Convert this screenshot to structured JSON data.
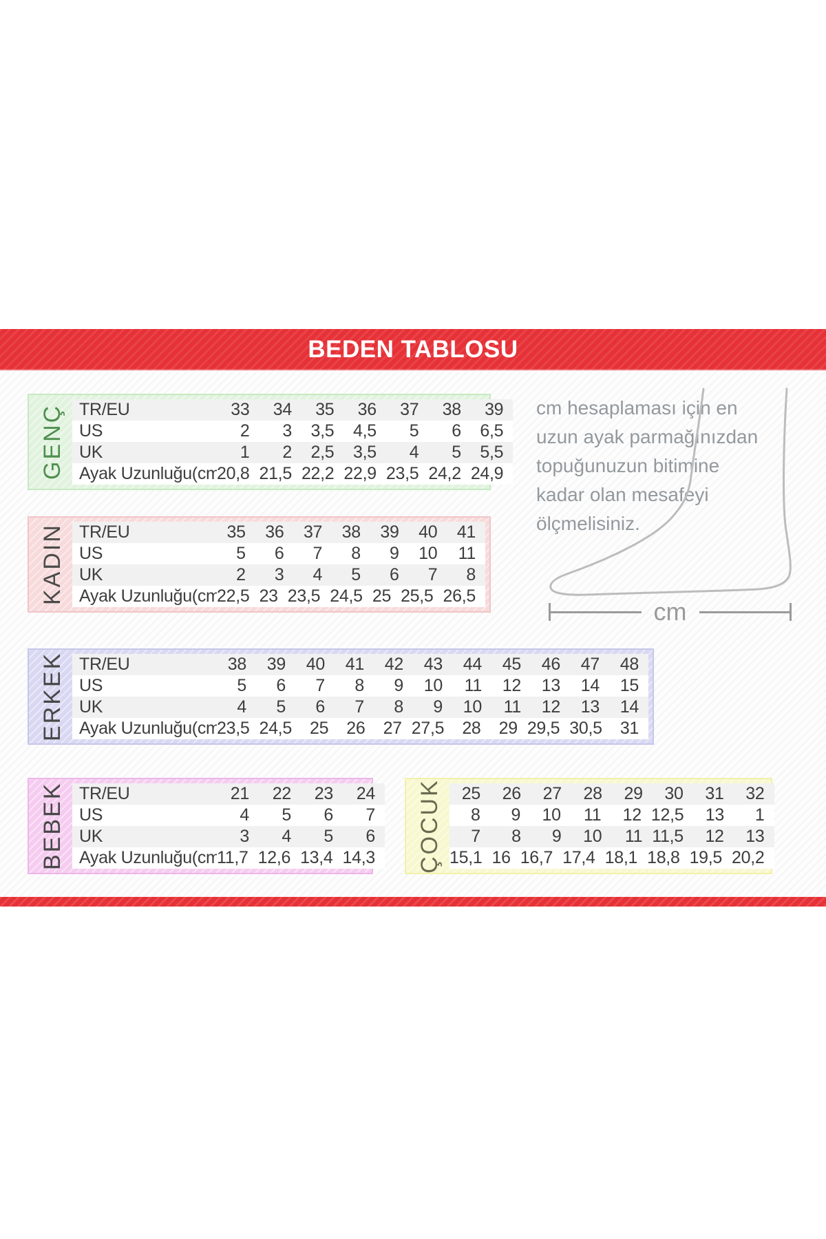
{
  "header": {
    "title": "BEDEN TABLOSU"
  },
  "instruction": {
    "lines": [
      "cm hesaplaması için en",
      "uzun ayak parmağınızdan",
      "topuğunuzun bitimine",
      "kadar olan mesafeyi",
      "ölçmelisiniz."
    ]
  },
  "measure": {
    "unit": "cm"
  },
  "colors": {
    "band_red": "#e63137",
    "table_text": "#3d3d3d",
    "row_stripe_gray": "#f1f1f1",
    "instruction_text": "#94999d",
    "foot_outline": "#bcbcbc"
  },
  "tables": [
    {
      "name": "genc",
      "label": "GENÇ",
      "bg": "#e1f3de",
      "border": "#c6e9c1",
      "label_color": "#4f8f4f",
      "row_labels": [
        "TR/EU",
        "US",
        "UK",
        "Ayak Uzunluğu(cm)"
      ],
      "rows": [
        [
          "33",
          "34",
          "35",
          "36",
          "37",
          "38",
          "39"
        ],
        [
          "2",
          "3",
          "3,5",
          "4,5",
          "5",
          "6",
          "6,5"
        ],
        [
          "1",
          "2",
          "2,5",
          "3,5",
          "4",
          "5",
          "5,5"
        ],
        [
          "20,8",
          "21,5",
          "22,2",
          "22,9",
          "23,5",
          "24,2",
          "24,9"
        ]
      ]
    },
    {
      "name": "kadin",
      "label": "KADIN",
      "bg": "#f7dadb",
      "border": "#f0c5c7",
      "label_color": "#4a4a4a",
      "row_labels": [
        "TR/EU",
        "US",
        "UK",
        "Ayak Uzunluğu(cm)"
      ],
      "rows": [
        [
          "35",
          "36",
          "37",
          "38",
          "39",
          "40",
          "41"
        ],
        [
          "5",
          "6",
          "7",
          "8",
          "9",
          "10",
          "11"
        ],
        [
          "2",
          "3",
          "4",
          "5",
          "6",
          "7",
          "8"
        ],
        [
          "22,5",
          "23",
          "23,5",
          "24,5",
          "25",
          "25,5",
          "26,5"
        ]
      ]
    },
    {
      "name": "erkek",
      "label": "ERKEK",
      "bg": "#d8d8f3",
      "border": "#c6c6ea",
      "label_color": "#474747",
      "row_labels": [
        "TR/EU",
        "US",
        "UK",
        "Ayak Uzunluğu(cm)"
      ],
      "rows": [
        [
          "38",
          "39",
          "40",
          "41",
          "42",
          "43",
          "44",
          "45",
          "46",
          "47",
          "48"
        ],
        [
          "5",
          "6",
          "7",
          "8",
          "9",
          "10",
          "11",
          "12",
          "13",
          "14",
          "15"
        ],
        [
          "4",
          "5",
          "6",
          "7",
          "8",
          "9",
          "10",
          "11",
          "12",
          "13",
          "14"
        ],
        [
          "23,5",
          "24,5",
          "25",
          "26",
          "27",
          "27,5",
          "28",
          "29",
          "29,5",
          "30,5",
          "31"
        ]
      ]
    },
    {
      "name": "bebek",
      "label": "BEBEK",
      "bg": "#f5ccf0",
      "border": "#eeb6e7",
      "label_color": "#474747",
      "row_labels": [
        "TR/EU",
        "US",
        "UK",
        "Ayak Uzunluğu(cm)"
      ],
      "rows": [
        [
          "21",
          "22",
          "23",
          "24"
        ],
        [
          "4",
          "5",
          "6",
          "7"
        ],
        [
          "3",
          "4",
          "5",
          "6"
        ],
        [
          "11,7",
          "12,6",
          "13,4",
          "14,3"
        ]
      ]
    },
    {
      "name": "cocuk",
      "label": "ÇOCUK",
      "bg": "#f8f8cf",
      "border": "#f0f0ab",
      "label_color": "#6a6a50",
      "row_labels": null,
      "rows": [
        [
          "25",
          "26",
          "27",
          "28",
          "29",
          "30",
          "31",
          "32"
        ],
        [
          "8",
          "9",
          "10",
          "11",
          "12",
          "12,5",
          "13",
          "1"
        ],
        [
          "7",
          "8",
          "9",
          "10",
          "11",
          "11,5",
          "12",
          "13"
        ],
        [
          "15,1",
          "16",
          "16,7",
          "17,4",
          "18,1",
          "18,8",
          "19,5",
          "20,2"
        ]
      ]
    }
  ]
}
